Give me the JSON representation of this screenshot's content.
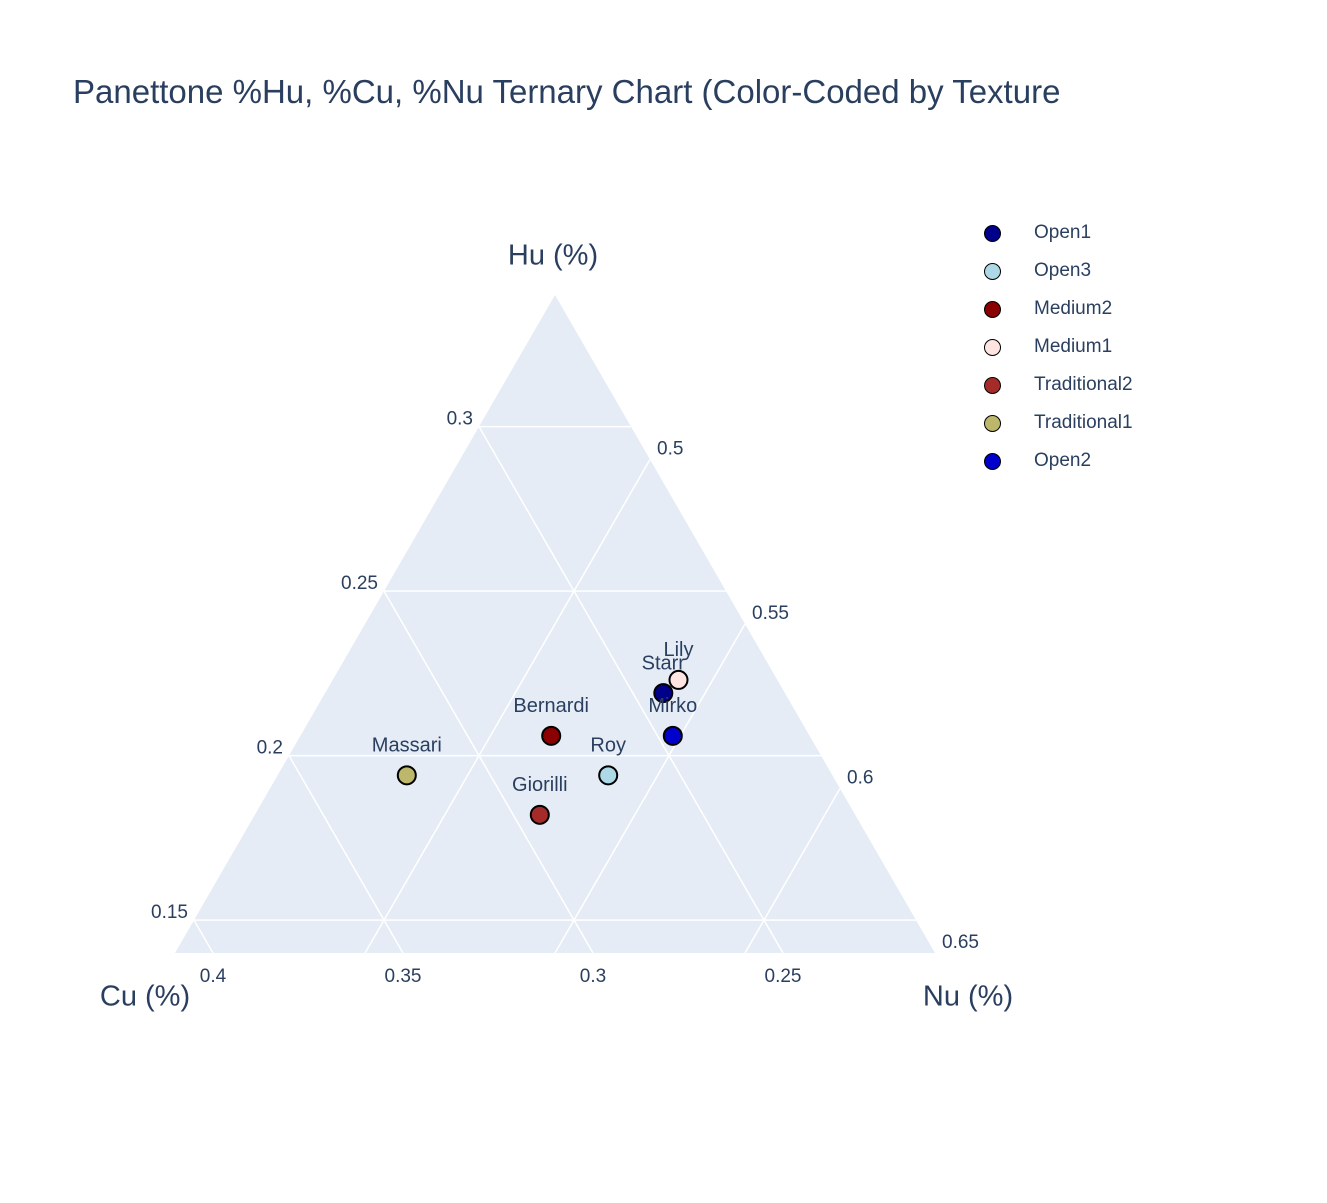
{
  "title": "Panettone %Hu, %Cu, %Nu Ternary Chart (Color-Coded by Texture",
  "colors": {
    "text": "#2a3f5f",
    "plot_background": "#e5ecf6",
    "gridline": "#ffffff",
    "marker_outline": "#000000",
    "page_background": "#ffffff"
  },
  "legend": {
    "items": [
      {
        "label": "Open1",
        "color": "#00008b"
      },
      {
        "label": "Open3",
        "color": "#add8e6"
      },
      {
        "label": "Medium2",
        "color": "#8b0000"
      },
      {
        "label": "Medium1",
        "color": "#ffe4e1"
      },
      {
        "label": "Traditional2",
        "color": "#a52a2a"
      },
      {
        "label": "Traditional1",
        "color": "#bdb76b"
      },
      {
        "label": "Open2",
        "color": "#0000cd"
      }
    ]
  },
  "chart_data": {
    "type": "scatter",
    "subtype": "ternary",
    "grid": true,
    "legend_position": "top-right",
    "axes": {
      "a": {
        "title": "Hu (%)",
        "min": 0.14,
        "max": 0.34,
        "ticks": [
          0.15,
          0.2,
          0.25,
          0.3
        ]
      },
      "b": {
        "title": "Cu (%)",
        "min": 0.21,
        "max": 0.41,
        "ticks": [
          0.4,
          0.35,
          0.3,
          0.25
        ]
      },
      "c": {
        "title": "Nu (%)",
        "min": 0.45,
        "max": 0.65,
        "ticks": [
          0.5,
          0.55,
          0.6,
          0.65
        ]
      }
    },
    "points": [
      {
        "name": "Starr",
        "series": "Open1",
        "color": "#00008b",
        "hu": 0.219,
        "cu": 0.242,
        "nu": 0.539
      },
      {
        "name": "Roy",
        "series": "Open3",
        "color": "#add8e6",
        "hu": 0.194,
        "cu": 0.269,
        "nu": 0.537
      },
      {
        "name": "Bernardi",
        "series": "Medium2",
        "color": "#8b0000",
        "hu": 0.206,
        "cu": 0.278,
        "nu": 0.516
      },
      {
        "name": "Lily",
        "series": "Medium1",
        "color": "#ffe4e1",
        "hu": 0.223,
        "cu": 0.236,
        "nu": 0.541
      },
      {
        "name": "Giorilli",
        "series": "Traditional2",
        "color": "#a52a2a",
        "hu": 0.182,
        "cu": 0.293,
        "nu": 0.525
      },
      {
        "name": "Massari",
        "series": "Traditional1",
        "color": "#bdb76b",
        "hu": 0.194,
        "cu": 0.322,
        "nu": 0.484
      },
      {
        "name": "Mirko",
        "series": "Open2",
        "color": "#0000cd",
        "hu": 0.206,
        "cu": 0.246,
        "nu": 0.548
      }
    ]
  }
}
